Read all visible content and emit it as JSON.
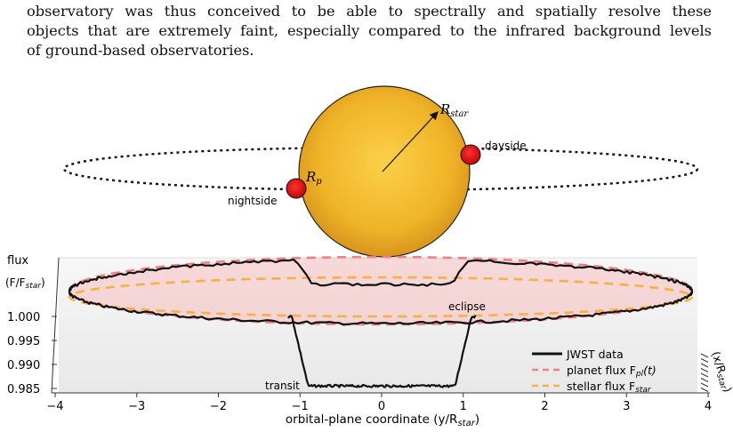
{
  "paragraph": {
    "lines": [
      "observatory was thus conceived to be able to spectrally and spatially resolve these",
      "objects that are extremely faint, especially compared to the infrared background levels",
      "of ground-based observatories."
    ]
  },
  "schematic": {
    "r_star_label": "R",
    "r_star_sub": "star",
    "r_p_label": "R",
    "r_p_sub": "p",
    "dayside_label": "dayside",
    "nightside_label": "nightside",
    "colors": {
      "star": "#f0b428",
      "planet": "#e01010"
    }
  },
  "chart_data": {
    "type": "line",
    "zlabel_line1": "flux",
    "zlabel_line2": "(F/F",
    "zlabel_sub": "star",
    "zlabel_close": ")",
    "xlabel": "orbital-plane coordinate (y/R",
    "xlabel_sub": "star",
    "xlabel_close": ")",
    "depth_label": "(x/R",
    "depth_sub": "star",
    "depth_close": ")",
    "x_ticks": [
      "−4",
      "−3",
      "−2",
      "−1",
      "0",
      "1",
      "2",
      "3",
      "4"
    ],
    "y_ticks": [
      "1.000",
      "0.995",
      "0.990",
      "0.985"
    ],
    "xlim": [
      -4,
      4
    ],
    "ylim": [
      0.984,
      1.0012
    ],
    "annotations": {
      "transit": "transit",
      "eclipse": "eclipse"
    },
    "legend": [
      {
        "label": "JWST data",
        "color": "#111111",
        "style": "solid"
      },
      {
        "label": "planet flux F",
        "sub": "pl",
        "suffix": "(t)",
        "color": "#f08080",
        "style": "dashed"
      },
      {
        "label": "stellar flux F",
        "sub": "star",
        "suffix": "",
        "color": "#f8b040",
        "style": "dashed"
      }
    ],
    "series": [
      {
        "name": "JWST data",
        "transit_curve": {
          "x": [
            -1.1,
            -1.0,
            -0.9,
            0.9,
            1.0,
            1.1
          ],
          "y": [
            1.0,
            0.9925,
            0.9855,
            0.9855,
            0.9925,
            1.0
          ]
        }
      }
    ]
  }
}
